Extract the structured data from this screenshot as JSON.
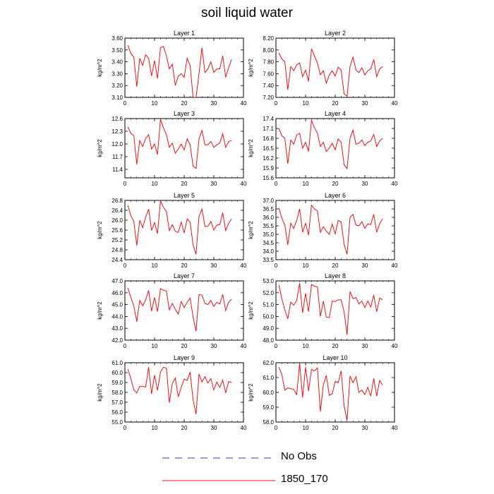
{
  "title": "soil liquid water",
  "legend": [
    {
      "label": "No Obs",
      "color": "#3a3aa8",
      "style": "dashed"
    },
    {
      "label": "1850_170",
      "color": "#e8141a",
      "style": "solid"
    }
  ],
  "chart_data": [
    {
      "type": "line",
      "title": "Layer 1",
      "ylabel": "kg/m^2",
      "xlim": [
        0,
        40
      ],
      "ylim": [
        3.1,
        3.6
      ],
      "xticks": [
        0,
        10,
        20,
        30,
        40
      ],
      "yticks": [
        "3.10",
        "3.20",
        "3.30",
        "3.40",
        "3.50",
        "3.60"
      ],
      "series": [
        {
          "values": [
            3.54,
            3.47,
            3.44,
            3.19,
            3.43,
            3.37,
            3.46,
            3.43,
            3.28,
            3.41,
            3.26,
            3.52,
            3.53,
            3.45,
            3.34,
            3.38,
            3.2,
            3.28,
            3.3,
            3.27,
            3.43,
            3.37,
            3.1,
            3.1,
            3.3,
            3.52,
            3.31,
            3.34,
            3.4,
            3.31,
            3.34,
            3.34,
            3.45,
            3.27,
            3.35,
            3.42
          ]
        }
      ]
    },
    {
      "type": "line",
      "title": "Layer 2",
      "ylabel": "kg/m^2",
      "xlim": [
        0,
        40
      ],
      "ylim": [
        7.2,
        8.2
      ],
      "xticks": [
        0,
        10,
        20,
        30,
        40
      ],
      "yticks": [
        "7.20",
        "7.40",
        "7.60",
        "7.80",
        "8.00",
        "8.20"
      ],
      "series": [
        {
          "values": [
            7.95,
            7.85,
            7.8,
            7.33,
            7.72,
            7.65,
            7.75,
            7.78,
            7.55,
            7.66,
            7.47,
            8.02,
            7.9,
            7.78,
            7.58,
            7.65,
            7.44,
            7.58,
            7.65,
            7.56,
            7.71,
            7.66,
            7.26,
            7.22,
            7.72,
            7.88,
            7.66,
            7.62,
            7.7,
            7.58,
            7.65,
            7.68,
            7.84,
            7.55,
            7.68,
            7.72
          ]
        }
      ]
    },
    {
      "type": "line",
      "title": "Layer 3",
      "ylabel": "kg/m^2",
      "xlim": [
        0,
        40
      ],
      "ylim": [
        11.2,
        12.6
      ],
      "xticks": [
        0,
        10,
        20,
        30,
        40
      ],
      "yticks": [
        "11.4",
        "11.7",
        "12.0",
        "12.3",
        "12.6"
      ],
      "series": [
        {
          "values": [
            12.4,
            12.25,
            12.2,
            11.52,
            12.08,
            11.94,
            12.13,
            12.22,
            11.88,
            12.0,
            11.75,
            12.58,
            12.38,
            12.22,
            11.92,
            12.02,
            11.78,
            11.88,
            12.0,
            11.86,
            12.12,
            11.98,
            11.48,
            11.42,
            12.12,
            12.32,
            11.98,
            11.98,
            12.06,
            11.92,
            11.98,
            12.02,
            12.24,
            11.92,
            12.06,
            12.08
          ]
        }
      ]
    },
    {
      "type": "line",
      "title": "Layer 4",
      "ylabel": "kg/m^2",
      "xlim": [
        0,
        40
      ],
      "ylim": [
        15.6,
        17.4
      ],
      "xticks": [
        0,
        10,
        20,
        30,
        40
      ],
      "yticks": [
        "15.6",
        "15.9",
        "16.2",
        "16.5",
        "16.8",
        "17.1",
        "17.4"
      ],
      "series": [
        {
          "values": [
            17.1,
            16.88,
            16.8,
            16.03,
            16.75,
            16.62,
            16.9,
            16.95,
            16.5,
            16.68,
            16.4,
            17.35,
            17.12,
            16.95,
            16.55,
            16.68,
            16.4,
            16.5,
            16.65,
            16.45,
            16.78,
            16.68,
            16.0,
            15.88,
            16.8,
            17.05,
            16.62,
            16.65,
            16.75,
            16.58,
            16.68,
            16.72,
            16.92,
            16.55,
            16.72,
            16.8
          ]
        }
      ]
    },
    {
      "type": "line",
      "title": "Layer 5",
      "ylabel": "kg/m^2",
      "xlim": [
        0,
        40
      ],
      "ylim": [
        24.4,
        26.8
      ],
      "xticks": [
        0,
        10,
        20,
        30,
        40
      ],
      "yticks": [
        "24.4",
        "24.8",
        "25.2",
        "25.6",
        "26.0",
        "26.4",
        "26.8"
      ],
      "series": [
        {
          "values": [
            26.6,
            26.18,
            25.95,
            24.98,
            26.0,
            25.7,
            26.12,
            26.45,
            25.58,
            25.9,
            25.46,
            26.78,
            26.52,
            26.35,
            25.58,
            25.82,
            25.55,
            25.5,
            25.92,
            25.48,
            26.05,
            25.92,
            25.0,
            24.62,
            26.15,
            26.45,
            25.75,
            25.75,
            25.95,
            25.6,
            25.8,
            25.82,
            26.3,
            25.58,
            25.88,
            26.05
          ]
        }
      ]
    },
    {
      "type": "line",
      "title": "Layer 6",
      "ylabel": "kg/m^2",
      "xlim": [
        0,
        40
      ],
      "ylim": [
        33.5,
        37.0
      ],
      "xticks": [
        0,
        10,
        20,
        30,
        40
      ],
      "yticks": [
        "33.5",
        "34.0",
        "34.5",
        "35.0",
        "35.5",
        "36.0",
        "36.5",
        "37.0"
      ],
      "series": [
        {
          "values": [
            36.55,
            35.95,
            35.55,
            34.38,
            35.65,
            35.35,
            35.82,
            36.5,
            35.12,
            35.65,
            34.95,
            36.72,
            36.5,
            36.38,
            35.12,
            35.45,
            35.18,
            35.0,
            35.6,
            35.02,
            35.82,
            35.72,
            34.42,
            33.82,
            36.0,
            36.18,
            35.55,
            35.5,
            35.75,
            35.35,
            35.62,
            35.58,
            36.18,
            35.12,
            35.62,
            35.92
          ]
        }
      ]
    },
    {
      "type": "line",
      "title": "Layer 7",
      "ylabel": "kg/m^2",
      "xlim": [
        0,
        40
      ],
      "ylim": [
        42.0,
        47.0
      ],
      "xticks": [
        0,
        10,
        20,
        30,
        40
      ],
      "yticks": [
        "42.0",
        "43.0",
        "44.0",
        "45.0",
        "46.0",
        "47.0"
      ],
      "series": [
        {
          "values": [
            46.4,
            45.6,
            44.9,
            43.55,
            45.35,
            44.9,
            45.4,
            46.2,
            44.45,
            45.6,
            44.4,
            46.35,
            46.2,
            46.15,
            44.55,
            45.1,
            44.6,
            44.2,
            45.25,
            44.75,
            45.2,
            45.55,
            43.95,
            42.75,
            45.85,
            45.8,
            45.1,
            45.0,
            45.35,
            44.85,
            45.2,
            45.05,
            45.85,
            44.5,
            45.2,
            45.45
          ]
        }
      ]
    },
    {
      "type": "line",
      "title": "Layer 8",
      "ylabel": "kg/m^2",
      "xlim": [
        0,
        40
      ],
      "ylim": [
        48.0,
        53.0
      ],
      "xticks": [
        0,
        10,
        20,
        30,
        40
      ],
      "yticks": [
        "48.0",
        "49.0",
        "50.0",
        "51.0",
        "52.0",
        "53.0"
      ],
      "series": [
        {
          "values": [
            52.65,
            51.5,
            50.55,
            49.8,
            51.2,
            50.95,
            51.35,
            52.8,
            50.3,
            51.95,
            50.4,
            52.7,
            52.55,
            52.5,
            50.0,
            51.3,
            49.95,
            49.9,
            51.3,
            51.25,
            51.4,
            51.4,
            50.4,
            48.45,
            52.1,
            51.5,
            51.6,
            51.05,
            51.3,
            50.75,
            51.3,
            50.8,
            51.8,
            50.4,
            51.55,
            51.4
          ]
        }
      ]
    },
    {
      "type": "line",
      "title": "Layer 9",
      "ylabel": "kg/m^2",
      "xlim": [
        0,
        40
      ],
      "ylim": [
        55.0,
        61.0
      ],
      "xticks": [
        0,
        10,
        20,
        30,
        40
      ],
      "yticks": [
        "55.0",
        "56.0",
        "57.0",
        "58.0",
        "59.0",
        "60.0",
        "61.0"
      ],
      "series": [
        {
          "values": [
            60.35,
            59.4,
            58.25,
            57.95,
            58.6,
            58.6,
            58.55,
            60.55,
            57.85,
            59.75,
            58.2,
            60.05,
            60.55,
            60.45,
            56.95,
            58.9,
            59.45,
            57.55,
            58.5,
            59.35,
            59.2,
            60.05,
            57.25,
            55.8,
            59.85,
            59.05,
            59.6,
            58.95,
            59.4,
            58.25,
            59.05,
            58.5,
            59.25,
            57.95,
            59.1,
            59.0
          ]
        }
      ]
    },
    {
      "type": "line",
      "title": "Layer 10",
      "ylabel": "kg/m^2",
      "xlim": [
        0,
        40
      ],
      "ylim": [
        58.0,
        62.0
      ],
      "xticks": [
        0,
        10,
        20,
        30,
        40
      ],
      "yticks": [
        "58.0",
        "59.0",
        "60.0",
        "61.0",
        "62.0"
      ],
      "series": [
        {
          "values": [
            61.7,
            61.2,
            60.15,
            60.3,
            60.25,
            60.2,
            59.85,
            61.95,
            59.65,
            61.7,
            60.1,
            61.55,
            61.45,
            61.65,
            58.7,
            60.5,
            61.15,
            59.8,
            59.9,
            60.75,
            60.65,
            61.45,
            59.1,
            58.1,
            61.1,
            60.65,
            61.05,
            60.0,
            60.15,
            59.85,
            60.35,
            59.75,
            60.95,
            59.75,
            60.8,
            60.5
          ]
        }
      ]
    }
  ]
}
